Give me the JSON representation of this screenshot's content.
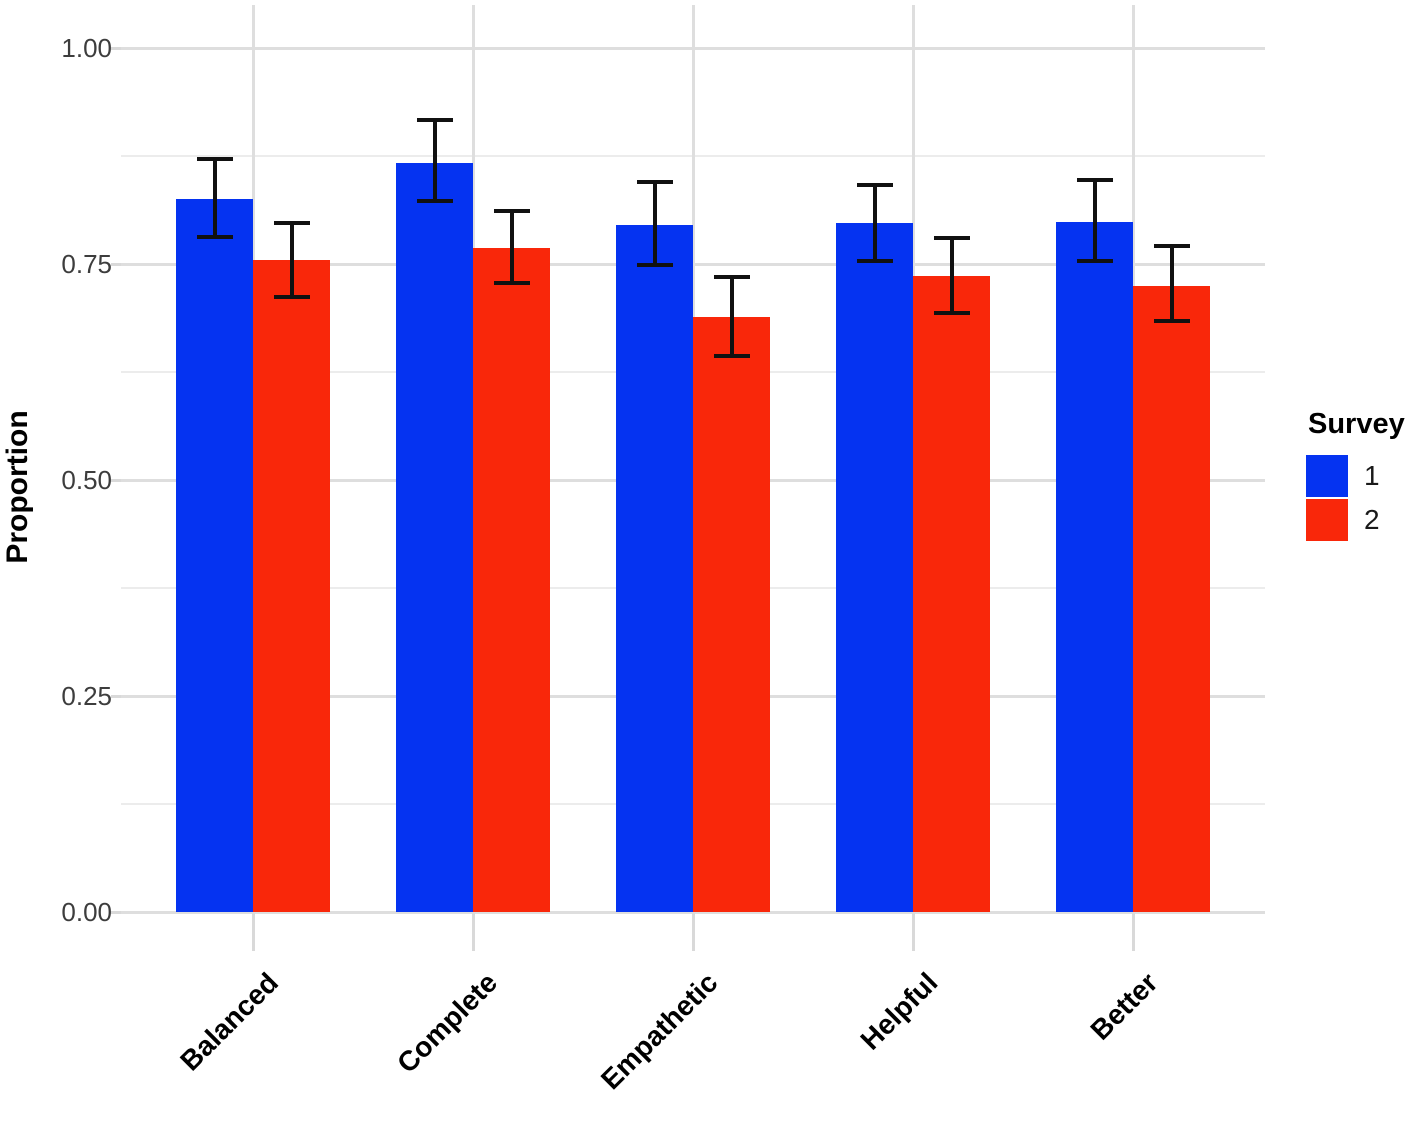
{
  "chart_data": {
    "type": "bar",
    "title": "",
    "xlabel": "",
    "ylabel": "Proportion",
    "ylim": [
      0,
      1.05
    ],
    "grid": true,
    "categories": [
      "Balanced",
      "Complete",
      "Empathetic",
      "Helpful",
      "Better"
    ],
    "y_major_ticks": [
      {
        "value": 0.0,
        "label": "0.00"
      },
      {
        "value": 0.25,
        "label": "0.25"
      },
      {
        "value": 0.5,
        "label": "0.50"
      },
      {
        "value": 0.75,
        "label": "0.75"
      },
      {
        "value": 1.0,
        "label": "1.00"
      }
    ],
    "y_minor_ticks": [
      0.125,
      0.375,
      0.625,
      0.875
    ],
    "legend": {
      "title": "Survey",
      "position": "right"
    },
    "series": [
      {
        "name": "1",
        "color": "#0533f1",
        "values": [
          0.825,
          0.867,
          0.795,
          0.797,
          0.799
        ],
        "error_low": [
          0.781,
          0.823,
          0.749,
          0.753,
          0.753
        ],
        "error_high": [
          0.872,
          0.917,
          0.845,
          0.842,
          0.847
        ]
      },
      {
        "name": "2",
        "color": "#f9270a",
        "values": [
          0.755,
          0.768,
          0.689,
          0.736,
          0.724
        ],
        "error_low": [
          0.712,
          0.728,
          0.643,
          0.693,
          0.684
        ],
        "error_high": [
          0.797,
          0.811,
          0.735,
          0.78,
          0.771
        ]
      }
    ],
    "style": {
      "major_grid_color": "#dedede",
      "minor_grid_color": "#ececec",
      "tick_color": "#d9d9d9",
      "errorbar_color": "#111111",
      "background": "#ffffff"
    }
  }
}
